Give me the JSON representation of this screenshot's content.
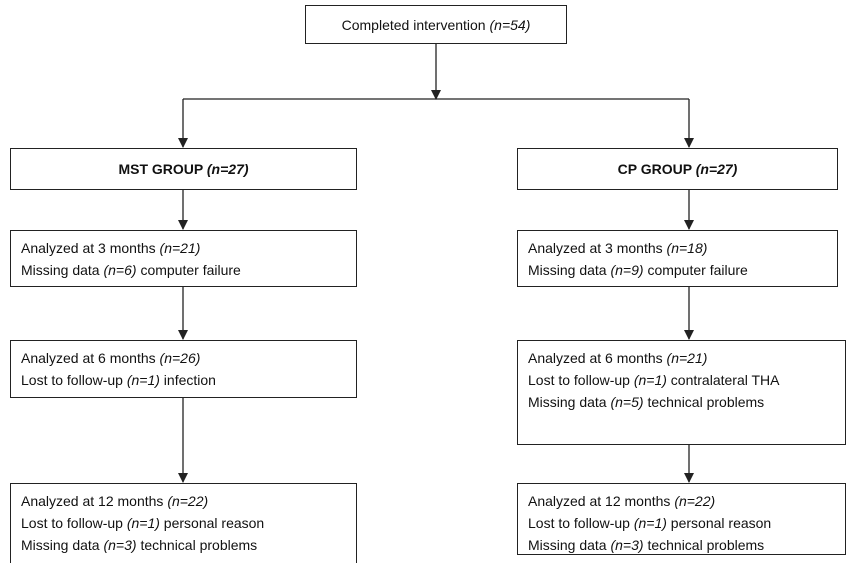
{
  "nodes": [
    {
      "lines": [
        [
          "Completed intervention ",
          "(n=54)"
        ]
      ]
    },
    {
      "lines": [
        [
          "MST GROUP ",
          "(n=27)"
        ]
      ]
    },
    {
      "lines": [
        [
          "CP GROUP ",
          "(n=27)"
        ]
      ]
    },
    {
      "lines": [
        [
          "Analyzed at 3 months ",
          "(n=21)"
        ],
        [
          "Missing data ",
          "(n=6)",
          " computer failure"
        ]
      ]
    },
    {
      "lines": [
        [
          "Analyzed at 3 months ",
          "(n=18)"
        ],
        [
          "Missing data ",
          "(n=9)",
          " computer failure"
        ]
      ]
    },
    {
      "lines": [
        [
          "Analyzed at 6 months ",
          "(n=26)"
        ],
        [
          "Lost to follow-up ",
          "(n=1)",
          " infection"
        ]
      ]
    },
    {
      "lines": [
        [
          "Analyzed at 6 months ",
          "(n=21)"
        ],
        [
          "Lost to follow-up ",
          "(n=1)",
          " contralateral THA"
        ],
        [
          "Missing data ",
          "(n=5)",
          " technical problems"
        ]
      ]
    },
    {
      "lines": [
        [
          "Analyzed at 12 months ",
          "(n=22)"
        ],
        [
          "Lost to follow-up ",
          "(n=1)",
          " personal reason"
        ],
        [
          "Missing data ",
          "(n=3)",
          " technical problems"
        ]
      ]
    },
    {
      "lines": [
        [
          "Analyzed at 12 months ",
          "(n=22)"
        ],
        [
          "Lost to follow-up ",
          "(n=1)",
          " personal reason"
        ],
        [
          "Missing data ",
          "(n=3)",
          " technical problems"
        ]
      ]
    }
  ]
}
